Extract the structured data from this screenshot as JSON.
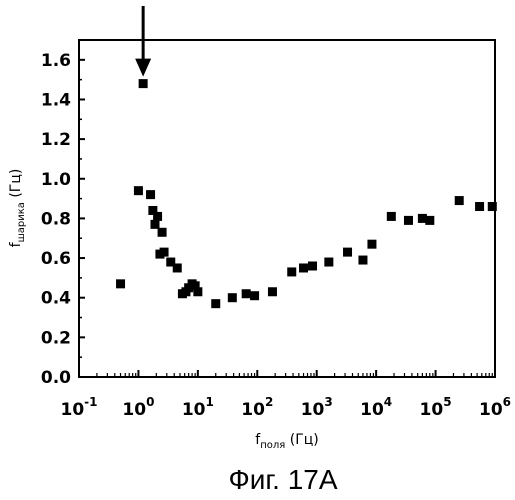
{
  "caption": "Фиг. 17A",
  "chart_data": {
    "type": "scatter",
    "title": "",
    "xlabel": {
      "main": "f",
      "sub": "поля",
      "unit": "(Гц)"
    },
    "ylabel": {
      "main": "f",
      "sub": "шарика",
      "unit": "(Гц)"
    },
    "x_scale": "log",
    "xlim": [
      0.1,
      1000000
    ],
    "ylim": [
      0.0,
      1.7
    ],
    "x_ticks": [
      {
        "value": 0.1,
        "base": "10",
        "exp": "-1"
      },
      {
        "value": 1,
        "base": "10",
        "exp": "0"
      },
      {
        "value": 10,
        "base": "10",
        "exp": "1"
      },
      {
        "value": 100,
        "base": "10",
        "exp": "2"
      },
      {
        "value": 1000,
        "base": "10",
        "exp": "3"
      },
      {
        "value": 10000,
        "base": "10",
        "exp": "4"
      },
      {
        "value": 100000,
        "base": "10",
        "exp": "5"
      },
      {
        "value": 1000000,
        "base": "10",
        "exp": "6"
      }
    ],
    "y_ticks": [
      "0.0",
      "0.2",
      "0.4",
      "0.6",
      "0.8",
      "1.0",
      "1.2",
      "1.4",
      "1.6"
    ],
    "grid": false,
    "marker": "square",
    "annotation": {
      "type": "arrow",
      "points_to": [
        1.2,
        1.48
      ]
    },
    "points": [
      [
        0.5,
        0.47
      ],
      [
        1.0,
        0.94
      ],
      [
        1.2,
        1.48
      ],
      [
        1.6,
        0.92
      ],
      [
        1.75,
        0.84
      ],
      [
        1.9,
        0.77
      ],
      [
        2.1,
        0.81
      ],
      [
        2.3,
        0.62
      ],
      [
        2.5,
        0.73
      ],
      [
        2.7,
        0.63
      ],
      [
        3.5,
        0.58
      ],
      [
        4.5,
        0.55
      ],
      [
        5.5,
        0.42
      ],
      [
        6.3,
        0.43
      ],
      [
        7.0,
        0.45
      ],
      [
        8.0,
        0.47
      ],
      [
        9.0,
        0.46
      ],
      [
        10.0,
        0.43
      ],
      [
        20,
        0.37
      ],
      [
        38,
        0.4
      ],
      [
        65,
        0.42
      ],
      [
        90,
        0.41
      ],
      [
        180,
        0.43
      ],
      [
        380,
        0.53
      ],
      [
        600,
        0.55
      ],
      [
        850,
        0.56
      ],
      [
        1600,
        0.58
      ],
      [
        3300,
        0.63
      ],
      [
        6000,
        0.59
      ],
      [
        8500,
        0.67
      ],
      [
        18000,
        0.81
      ],
      [
        35000,
        0.79
      ],
      [
        60000,
        0.8
      ],
      [
        80000,
        0.79
      ],
      [
        250000,
        0.89
      ],
      [
        550000,
        0.86
      ],
      [
        900000,
        0.86
      ]
    ]
  }
}
